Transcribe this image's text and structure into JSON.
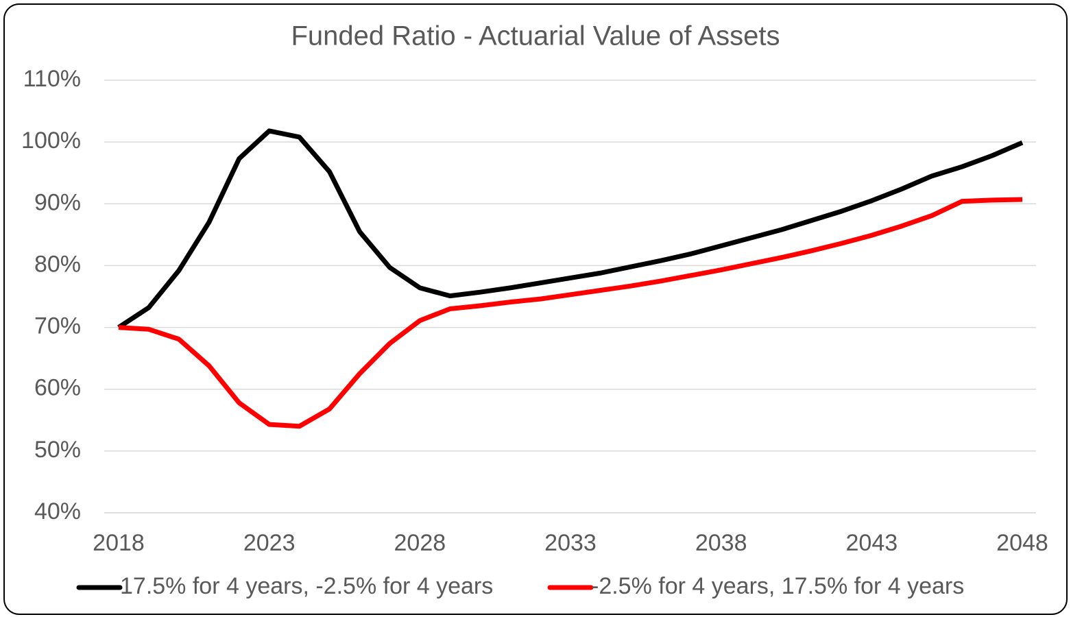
{
  "chart_data": {
    "type": "line",
    "title": "Funded Ratio - Actuarial Value of Assets",
    "x": [
      2018,
      2019,
      2020,
      2021,
      2022,
      2023,
      2024,
      2025,
      2026,
      2027,
      2028,
      2029,
      2030,
      2031,
      2032,
      2033,
      2034,
      2035,
      2036,
      2037,
      2038,
      2039,
      2040,
      2041,
      2042,
      2043,
      2044,
      2045,
      2046,
      2047,
      2048
    ],
    "xlim": [
      2018,
      2048
    ],
    "xticks": [
      2018,
      2023,
      2028,
      2033,
      2038,
      2043,
      2048
    ],
    "ylim": [
      40,
      110
    ],
    "yticks": [
      {
        "value": 40,
        "label": "40%"
      },
      {
        "value": 50,
        "label": "50%"
      },
      {
        "value": 60,
        "label": "60%"
      },
      {
        "value": 70,
        "label": "70%"
      },
      {
        "value": 80,
        "label": "80%"
      },
      {
        "value": 90,
        "label": "90%"
      },
      {
        "value": 100,
        "label": "100%"
      },
      {
        "value": 110,
        "label": "110%"
      }
    ],
    "grid": true,
    "legend": "bottom",
    "series": [
      {
        "name": "17.5% for 4 years, -2.5% for 4 years",
        "color": "#000000",
        "values": [
          70,
          73.2,
          79.2,
          87.0,
          97.3,
          101.8,
          100.8,
          95.2,
          85.5,
          79.7,
          76.4,
          75.1,
          75.7,
          76.4,
          77.2,
          78.0,
          78.8,
          79.8,
          80.8,
          81.9,
          83.2,
          84.5,
          85.8,
          87.3,
          88.8,
          90.5,
          92.4,
          94.5,
          96.0,
          97.8,
          99.9
        ]
      },
      {
        "name": "-2.5% for 4 years, 17.5% for 4 years",
        "color": "#ff0000",
        "values": [
          70,
          69.7,
          68.1,
          63.8,
          57.8,
          54.3,
          54.0,
          56.8,
          62.5,
          67.4,
          71.1,
          73.0,
          73.5,
          74.1,
          74.6,
          75.3,
          76.0,
          76.7,
          77.5,
          78.4,
          79.3,
          80.3,
          81.3,
          82.4,
          83.6,
          84.9,
          86.4,
          88.1,
          90.4,
          90.6,
          90.7
        ]
      }
    ]
  }
}
